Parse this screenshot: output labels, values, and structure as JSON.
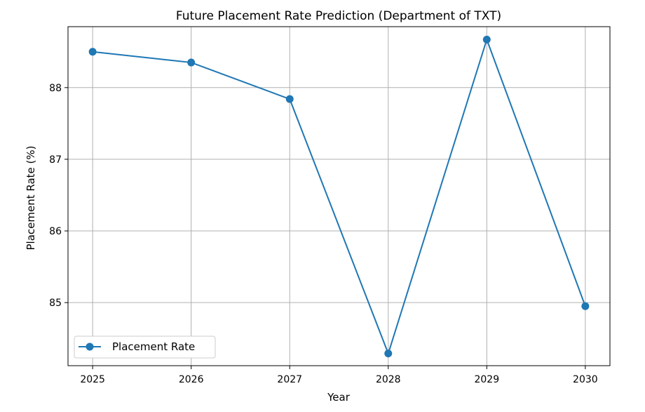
{
  "chart_data": {
    "type": "line",
    "title": "Future Placement Rate Prediction (Department of TXT)",
    "xlabel": "Year",
    "ylabel": "Placement Rate (%)",
    "x": [
      2025,
      2026,
      2027,
      2028,
      2029,
      2030
    ],
    "x_tick_labels": [
      "2025",
      "2026",
      "2027",
      "2028",
      "2029",
      "2030"
    ],
    "y_ticks": [
      85,
      86,
      87,
      88
    ],
    "y_tick_labels": [
      "85",
      "86",
      "87",
      "88"
    ],
    "xlim": [
      2024.75,
      2030.25
    ],
    "ylim": [
      84.12,
      88.85
    ],
    "grid": true,
    "legend_position": "lower-left",
    "series": [
      {
        "name": "Placement Rate",
        "color": "#1f77b4",
        "marker": "circle",
        "values": [
          88.5,
          88.35,
          87.84,
          84.29,
          88.67,
          84.95
        ]
      }
    ]
  }
}
